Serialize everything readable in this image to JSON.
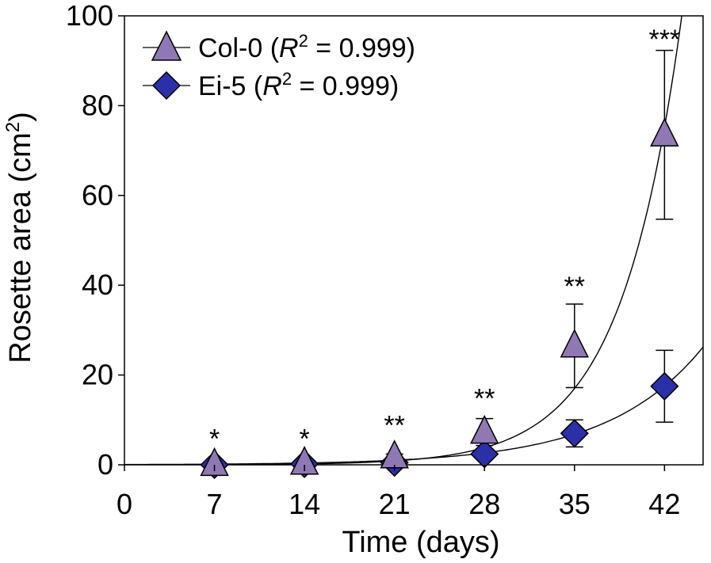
{
  "chart_data": {
    "type": "scatter",
    "title": "",
    "xlabel": "Time (days)",
    "ylabel_main": "Rosette area (cm",
    "ylabel_sup": "2",
    "ylabel_end": ")",
    "xlim": [
      0,
      45
    ],
    "ylim": [
      0,
      100
    ],
    "x_ticks": [
      0,
      7,
      14,
      21,
      28,
      35,
      42
    ],
    "x_tick_labels": [
      "0",
      "7",
      "14",
      "21",
      "28",
      "35",
      "42"
    ],
    "y_ticks": [
      0,
      20,
      40,
      60,
      80,
      100
    ],
    "y_tick_labels": [
      "0",
      "20",
      "40",
      "60",
      "80",
      "100"
    ],
    "grid": false,
    "legend_position": "top-left",
    "series": [
      {
        "name": "Col-0",
        "r2_label": "R",
        "r2_sup": "2",
        "r2_value": " = 0.999)",
        "marker": "triangle",
        "color": "#8f78b4",
        "x": [
          7,
          14,
          21,
          28,
          35,
          42
        ],
        "values": [
          0.1,
          0.4,
          1.8,
          7.3,
          26.5,
          73.5
        ],
        "errors": [
          0.1,
          0.2,
          0.6,
          3.0,
          9.3,
          18.8
        ],
        "fit": {
          "a": 0.01,
          "b": 0.2125
        }
      },
      {
        "name": "Ei-5",
        "r2_label": "R",
        "r2_sup": "2",
        "r2_value": " = 0.999)",
        "marker": "diamond",
        "color": "#2b2fa8",
        "x": [
          7,
          14,
          21,
          28,
          35,
          42
        ],
        "values": [
          0.0,
          0.2,
          0.5,
          2.4,
          7.0,
          17.5
        ],
        "errors": [
          0.0,
          0.1,
          0.2,
          0.8,
          3.0,
          8.0
        ],
        "fit": {
          "a": 0.0606,
          "b": 0.1349
        }
      }
    ],
    "significance": [
      {
        "x": 7,
        "label": "*",
        "y": 8
      },
      {
        "x": 14,
        "label": "*",
        "y": 8
      },
      {
        "x": 21,
        "label": "**",
        "y": 11
      },
      {
        "x": 28,
        "label": "**",
        "y": 17
      },
      {
        "x": 35,
        "label": "**",
        "y": 42
      },
      {
        "x": 42,
        "label": "***",
        "y": 97
      }
    ]
  }
}
